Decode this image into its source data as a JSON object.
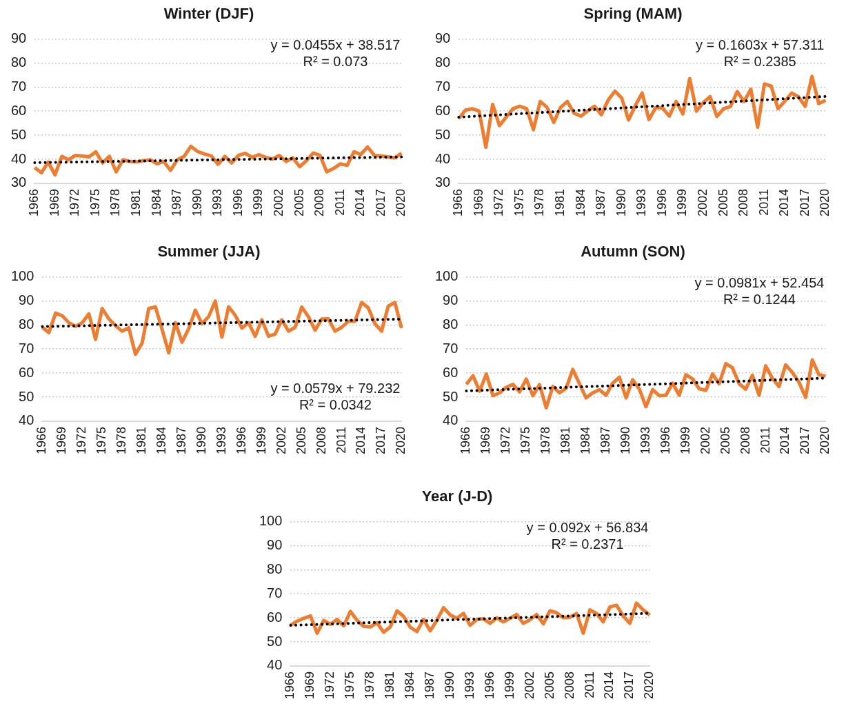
{
  "chart_data": [
    {
      "type": "line",
      "title": "Winter (DJF)",
      "categories": [
        "1966",
        null,
        null,
        "1969",
        null,
        null,
        "1972",
        null,
        null,
        "1975",
        null,
        null,
        "1978",
        null,
        null,
        "1981",
        null,
        null,
        "1984",
        null,
        null,
        "1987",
        null,
        null,
        "1990",
        null,
        null,
        "1993",
        null,
        null,
        "1996",
        null,
        null,
        "1999",
        null,
        null,
        "2002",
        null,
        null,
        "2005",
        null,
        null,
        "2008",
        null,
        null,
        "2011",
        null,
        null,
        "2014",
        null,
        null,
        "2017",
        null,
        null,
        "2020"
      ],
      "series": [
        {
          "color": "#ed7d31",
          "line_style": "solid",
          "values": [
            36.6,
            34.4,
            38.8,
            33.5,
            41.2,
            39.8,
            41.6,
            41.4,
            41,
            43.1,
            38.5,
            41.2,
            34.8,
            39.8,
            39.1,
            38.9,
            39.4,
            39.8,
            38.1,
            39.1,
            35.4,
            39.8,
            41.2,
            45.4,
            43.2,
            42.2,
            41.4,
            37.9,
            41.2,
            38.5,
            41.6,
            42.5,
            40.8,
            41.9,
            40.8,
            40.1,
            41.6,
            39.1,
            40.6,
            36.9,
            39.4,
            42.6,
            41.6,
            34.8,
            36.2,
            38.1,
            37.5,
            43.1,
            42,
            45.1,
            41.6,
            41.4,
            41,
            40.6,
            42.5
          ]
        },
        {
          "type": "line",
          "color": "#000000",
          "line_style": "dotted",
          "values": [
            38.6,
            null,
            null,
            null,
            null,
            null,
            null,
            null,
            null,
            null,
            null,
            null,
            null,
            null,
            null,
            null,
            null,
            null,
            null,
            null,
            null,
            null,
            null,
            null,
            null,
            null,
            null,
            null,
            null,
            null,
            null,
            null,
            null,
            null,
            null,
            null,
            null,
            null,
            null,
            null,
            null,
            null,
            null,
            null,
            null,
            null,
            null,
            null,
            null,
            null,
            null,
            null,
            null,
            null,
            41.0
          ]
        }
      ],
      "ylim": [
        30,
        90
      ],
      "yticks": [
        30,
        40,
        50,
        60,
        70,
        80,
        90
      ],
      "grid": "y",
      "annotations": [
        "y = 0.0455x + 38.517",
        "R² = 0.073"
      ]
    },
    {
      "type": "line",
      "title": "Spring (MAM)",
      "categories": [
        "1966",
        null,
        null,
        "1969",
        null,
        null,
        "1972",
        null,
        null,
        "1975",
        null,
        null,
        "1978",
        null,
        null,
        "1981",
        null,
        null,
        "1984",
        null,
        null,
        "1987",
        null,
        null,
        "1990",
        null,
        null,
        "1993",
        null,
        null,
        "1996",
        null,
        null,
        "1999",
        null,
        null,
        "2002",
        null,
        null,
        "2005",
        null,
        null,
        "2008",
        null,
        null,
        "2011",
        null,
        null,
        "2014",
        null,
        null,
        "2017",
        null,
        null,
        "2020"
      ],
      "series": [
        {
          "color": "#ed7d31",
          "line_style": "solid",
          "values": [
            56.9,
            60.4,
            61,
            60,
            45,
            62.8,
            54,
            57.5,
            61,
            62,
            61,
            52.3,
            64,
            61.6,
            55.3,
            61.6,
            64,
            59.1,
            57.9,
            60.1,
            62,
            58.5,
            64.6,
            68.3,
            65.4,
            56.3,
            62.3,
            67.5,
            56.5,
            61.5,
            61.3,
            57.9,
            64,
            58.8,
            73.5,
            60,
            63.5,
            66,
            57.8,
            61,
            61.9,
            68.1,
            64,
            69.1,
            53.3,
            71.3,
            70.4,
            61,
            64.1,
            67.5,
            66,
            62,
            74.4,
            63.1,
            64.5
          ]
        },
        {
          "type": "line",
          "color": "#000000",
          "line_style": "dotted",
          "values": [
            57.5,
            null,
            null,
            null,
            null,
            null,
            null,
            null,
            null,
            null,
            null,
            null,
            null,
            null,
            null,
            null,
            null,
            null,
            null,
            null,
            null,
            null,
            null,
            null,
            null,
            null,
            null,
            null,
            null,
            null,
            null,
            null,
            null,
            null,
            null,
            null,
            null,
            null,
            null,
            null,
            null,
            null,
            null,
            null,
            null,
            null,
            null,
            null,
            null,
            null,
            null,
            null,
            null,
            null,
            66.1
          ]
        }
      ],
      "ylim": [
        30,
        90
      ],
      "yticks": [
        30,
        40,
        50,
        60,
        70,
        80,
        90
      ],
      "grid": "y",
      "annotations": [
        "y = 0.1603x + 57.311",
        "R² = 0.2385"
      ]
    },
    {
      "type": "line",
      "title": "Summer (JJA)",
      "categories": [
        "1966",
        null,
        null,
        "1969",
        null,
        null,
        "1972",
        null,
        null,
        "1975",
        null,
        null,
        "1978",
        null,
        null,
        "1981",
        null,
        null,
        "1984",
        null,
        null,
        "1987",
        null,
        null,
        "1990",
        null,
        null,
        "1993",
        null,
        null,
        "1996",
        null,
        null,
        "1999",
        null,
        null,
        "2002",
        null,
        null,
        "2005",
        null,
        null,
        "2008",
        null,
        null,
        "2011",
        null,
        null,
        "2014",
        null,
        null,
        "2017",
        null,
        null,
        "2020"
      ],
      "series": [
        {
          "color": "#ed7d31",
          "line_style": "solid",
          "values": [
            79,
            76.8,
            84.9,
            83.8,
            80.9,
            79.4,
            80.9,
            84.6,
            74,
            86.8,
            82.5,
            79.7,
            77.4,
            78.8,
            67.8,
            72.4,
            86.8,
            87.5,
            78.2,
            68.4,
            80.9,
            72.8,
            78.4,
            86.1,
            80.5,
            83.4,
            89.9,
            74.9,
            87.5,
            84,
            78.7,
            80.9,
            75.3,
            82.1,
            75.3,
            76.2,
            82.1,
            77.4,
            79,
            87.4,
            83.4,
            77.8,
            82.4,
            82.5,
            77.4,
            79,
            81.5,
            81.5,
            89.3,
            87.1,
            80.5,
            77.4,
            87.8,
            89.3,
            78.7
          ]
        },
        {
          "type": "line",
          "color": "#000000",
          "line_style": "dotted",
          "values": [
            79.3,
            null,
            null,
            null,
            null,
            null,
            null,
            null,
            null,
            null,
            null,
            null,
            null,
            null,
            null,
            null,
            null,
            null,
            null,
            null,
            null,
            null,
            null,
            null,
            null,
            null,
            null,
            null,
            null,
            null,
            null,
            null,
            null,
            null,
            null,
            null,
            null,
            null,
            null,
            null,
            null,
            null,
            null,
            null,
            null,
            null,
            null,
            null,
            null,
            null,
            null,
            null,
            null,
            null,
            82.4
          ]
        }
      ],
      "ylim": [
        40,
        100
      ],
      "yticks": [
        40,
        50,
        60,
        70,
        80,
        90,
        100
      ],
      "grid": "y",
      "annotations": [
        "y = 0.0579x + 79.232",
        "R² = 0.0342"
      ]
    },
    {
      "type": "line",
      "title": "Autumn (SON)",
      "categories": [
        "1966",
        null,
        null,
        "1969",
        null,
        null,
        "1972",
        null,
        null,
        "1975",
        null,
        null,
        "1978",
        null,
        null,
        "1981",
        null,
        null,
        "1984",
        null,
        null,
        "1987",
        null,
        null,
        "1990",
        null,
        null,
        "1993",
        null,
        null,
        "1996",
        null,
        null,
        "1999",
        null,
        null,
        "2002",
        null,
        null,
        "2005",
        null,
        null,
        "2008",
        null,
        null,
        "2011",
        null,
        null,
        "2014",
        null,
        null,
        "2017",
        null,
        null,
        "2020"
      ],
      "series": [
        {
          "color": "#ed7d31",
          "line_style": "solid",
          "values": [
            55.3,
            58.9,
            52.5,
            59.6,
            50.6,
            51.8,
            54.1,
            55.3,
            52.2,
            57.5,
            50.6,
            55.2,
            45.6,
            54.4,
            51.8,
            53.7,
            61.5,
            55.6,
            49.7,
            51.8,
            53.1,
            50.8,
            55.8,
            58.3,
            49.7,
            57.2,
            53.4,
            46,
            53.1,
            50.6,
            50.8,
            55.8,
            50.8,
            59.3,
            57.6,
            53.5,
            52.8,
            59.6,
            55.6,
            63.9,
            62.2,
            55.6,
            53.3,
            59.1,
            50.8,
            63,
            57.8,
            54.4,
            63.4,
            60.3,
            56.2,
            49.9,
            65.5,
            59.3,
            58.7
          ]
        },
        {
          "type": "line",
          "color": "#000000",
          "line_style": "dotted",
          "values": [
            52.6,
            null,
            null,
            null,
            null,
            null,
            null,
            null,
            null,
            null,
            null,
            null,
            null,
            null,
            null,
            null,
            null,
            null,
            null,
            null,
            null,
            null,
            null,
            null,
            null,
            null,
            null,
            null,
            null,
            null,
            null,
            null,
            null,
            null,
            null,
            null,
            null,
            null,
            null,
            null,
            null,
            null,
            null,
            null,
            null,
            null,
            null,
            null,
            null,
            null,
            null,
            null,
            null,
            null,
            57.9
          ]
        }
      ],
      "ylim": [
        40,
        100
      ],
      "yticks": [
        40,
        50,
        60,
        70,
        80,
        90,
        100
      ],
      "grid": "y",
      "annotations": [
        "y = 0.0981x + 52.454",
        "R² = 0.1244"
      ]
    },
    {
      "type": "line",
      "title": "Year (J-D)",
      "categories": [
        "1966",
        null,
        null,
        "1969",
        null,
        null,
        "1972",
        null,
        null,
        "1975",
        null,
        null,
        "1978",
        null,
        null,
        "1981",
        null,
        null,
        "1984",
        null,
        null,
        "1987",
        null,
        null,
        "1990",
        null,
        null,
        "1993",
        null,
        null,
        "1996",
        null,
        null,
        "1999",
        null,
        null,
        "2002",
        null,
        null,
        "2005",
        null,
        null,
        "2008",
        null,
        null,
        "2011",
        null,
        null,
        "2014",
        null,
        null,
        "2017",
        null,
        null,
        "2020"
      ],
      "series": [
        {
          "color": "#ed7d31",
          "line_style": "solid",
          "values": [
            56.9,
            58.6,
            59.8,
            60.8,
            53.6,
            58.9,
            57.3,
            59.3,
            56.7,
            62.7,
            59,
            56.5,
            56.2,
            58,
            54,
            56.2,
            62.9,
            60.6,
            56.1,
            54.3,
            59.3,
            54.6,
            59,
            64.2,
            61.2,
            59.8,
            61.8,
            56.9,
            59.3,
            59.6,
            57.7,
            60,
            58.3,
            59.8,
            61.4,
            57.7,
            59.2,
            61.4,
            57.5,
            62.9,
            62.1,
            60,
            60.2,
            61.8,
            53.6,
            63.3,
            61.8,
            58.3,
            64.5,
            65.2,
            60.8,
            57.7,
            66.1,
            63.3,
            61.2
          ]
        },
        {
          "type": "line",
          "color": "#000000",
          "line_style": "dotted",
          "values": [
            56.9,
            null,
            null,
            null,
            null,
            null,
            null,
            null,
            null,
            null,
            null,
            null,
            null,
            null,
            null,
            null,
            null,
            null,
            null,
            null,
            null,
            null,
            null,
            null,
            null,
            null,
            null,
            null,
            null,
            null,
            null,
            null,
            null,
            null,
            null,
            null,
            null,
            null,
            null,
            null,
            null,
            null,
            null,
            null,
            null,
            null,
            null,
            null,
            null,
            null,
            null,
            null,
            null,
            null,
            61.9
          ]
        }
      ],
      "ylim": [
        40,
        100
      ],
      "yticks": [
        40,
        50,
        60,
        70,
        80,
        90,
        100
      ],
      "grid": "y",
      "annotations": [
        "y = 0.092x + 56.834",
        "R² = 0.2371"
      ]
    }
  ]
}
